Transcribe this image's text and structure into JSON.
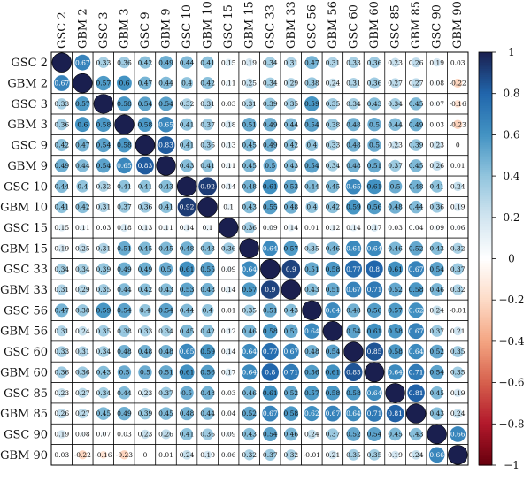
{
  "chart_data": {
    "type": "heatmap",
    "title": "",
    "row_labels": [
      "GSC 2",
      "GBM 2",
      "GSC 3",
      "GBM 3",
      "GSC 9",
      "GBM 9",
      "GSC 10",
      "GBM 10",
      "GSC 15",
      "GBM 15",
      "GSC 33",
      "GBM 33",
      "GSC 56",
      "GBM 56",
      "GSC 60",
      "GBM 60",
      "GSC 85",
      "GBM 85",
      "GSC 90",
      "GBM 90"
    ],
    "col_labels": [
      "GSC 2",
      "GBM 2",
      "GSC 3",
      "GBM 3",
      "GSC 9",
      "GBM 9",
      "GSC 10",
      "GBM 10",
      "GSC 15",
      "GBM 15",
      "GSC 33",
      "GBM 33",
      "GSC 56",
      "GBM 56",
      "GSC 60",
      "GBM 60",
      "GSC 85",
      "GBM 85",
      "GSC 90",
      "GBM 90"
    ],
    "values": [
      [
        1,
        0.67,
        0.33,
        0.36,
        0.42,
        0.49,
        0.44,
        0.41,
        0.15,
        0.19,
        0.34,
        0.31,
        0.47,
        0.31,
        0.33,
        0.36,
        0.23,
        0.26,
        0.19,
        0.03
      ],
      [
        0.67,
        1,
        0.57,
        0.6,
        0.47,
        0.44,
        0.4,
        0.42,
        0.11,
        0.25,
        0.34,
        0.29,
        0.38,
        0.24,
        0.31,
        0.36,
        0.27,
        0.27,
        0.08,
        -0.22
      ],
      [
        0.33,
        0.57,
        1,
        0.58,
        0.54,
        0.54,
        0.32,
        0.31,
        0.03,
        0.31,
        0.39,
        0.35,
        0.59,
        0.35,
        0.34,
        0.43,
        0.34,
        0.45,
        0.07,
        -0.16
      ],
      [
        0.36,
        0.6,
        0.58,
        1,
        0.58,
        0.65,
        0.41,
        0.37,
        0.18,
        0.51,
        0.49,
        0.44,
        0.54,
        0.38,
        0.48,
        0.5,
        0.44,
        0.49,
        0.03,
        -0.23
      ],
      [
        0.42,
        0.47,
        0.54,
        0.58,
        1,
        0.83,
        0.41,
        0.36,
        0.13,
        0.45,
        0.49,
        0.42,
        0.4,
        0.33,
        0.48,
        0.5,
        0.23,
        0.39,
        0.23,
        0
      ],
      [
        0.49,
        0.44,
        0.54,
        0.65,
        0.83,
        1,
        0.43,
        0.41,
        0.11,
        0.45,
        0.5,
        0.43,
        0.54,
        0.34,
        0.48,
        0.51,
        0.37,
        0.45,
        0.26,
        0.01
      ],
      [
        0.44,
        0.4,
        0.32,
        0.41,
        0.41,
        0.43,
        1,
        0.92,
        0.14,
        0.48,
        0.61,
        0.53,
        0.44,
        0.45,
        0.65,
        0.61,
        0.5,
        0.48,
        0.41,
        0.24
      ],
      [
        0.41,
        0.42,
        0.31,
        0.37,
        0.36,
        0.41,
        0.92,
        1,
        0.1,
        0.43,
        0.55,
        0.48,
        0.4,
        0.42,
        0.59,
        0.56,
        0.48,
        0.44,
        0.36,
        0.19
      ],
      [
        0.15,
        0.11,
        0.03,
        0.18,
        0.13,
        0.11,
        0.14,
        0.1,
        1,
        0.36,
        0.09,
        0.14,
        0.01,
        0.12,
        0.14,
        0.17,
        0.03,
        0.04,
        0.09,
        0.06
      ],
      [
        0.19,
        0.25,
        0.31,
        0.51,
        0.45,
        0.45,
        0.48,
        0.43,
        0.36,
        1,
        0.64,
        0.57,
        0.35,
        0.46,
        0.64,
        0.64,
        0.46,
        0.52,
        0.43,
        0.32
      ],
      [
        0.34,
        0.34,
        0.39,
        0.49,
        0.49,
        0.5,
        0.61,
        0.55,
        0.09,
        0.64,
        1,
        0.9,
        0.51,
        0.58,
        0.77,
        0.8,
        0.61,
        0.67,
        0.54,
        0.37
      ],
      [
        0.31,
        0.29,
        0.35,
        0.44,
        0.42,
        0.43,
        0.53,
        0.48,
        0.14,
        0.57,
        0.9,
        1,
        0.43,
        0.51,
        0.67,
        0.71,
        0.52,
        0.58,
        0.46,
        0.32
      ],
      [
        0.47,
        0.38,
        0.59,
        0.54,
        0.4,
        0.54,
        0.44,
        0.4,
        0.01,
        0.35,
        0.51,
        0.43,
        1,
        0.64,
        0.48,
        0.56,
        0.57,
        0.62,
        0.24,
        -0.01
      ],
      [
        0.31,
        0.24,
        0.35,
        0.38,
        0.33,
        0.34,
        0.45,
        0.42,
        0.12,
        0.46,
        0.58,
        0.51,
        0.64,
        1,
        0.54,
        0.61,
        0.58,
        0.67,
        0.37,
        0.21
      ],
      [
        0.33,
        0.31,
        0.34,
        0.48,
        0.48,
        0.48,
        0.65,
        0.59,
        0.14,
        0.64,
        0.77,
        0.67,
        0.48,
        0.54,
        1,
        0.85,
        0.58,
        0.64,
        0.52,
        0.35
      ],
      [
        0.36,
        0.36,
        0.43,
        0.5,
        0.5,
        0.51,
        0.61,
        0.56,
        0.17,
        0.64,
        0.8,
        0.71,
        0.56,
        0.61,
        0.85,
        1,
        0.64,
        0.71,
        0.54,
        0.35
      ],
      [
        0.23,
        0.27,
        0.34,
        0.44,
        0.23,
        0.37,
        0.5,
        0.48,
        0.03,
        0.46,
        0.61,
        0.52,
        0.57,
        0.58,
        0.58,
        0.64,
        1,
        0.81,
        0.45,
        0.19
      ],
      [
        0.26,
        0.27,
        0.45,
        0.49,
        0.39,
        0.45,
        0.48,
        0.44,
        0.04,
        0.52,
        0.67,
        0.58,
        0.62,
        0.67,
        0.64,
        0.71,
        0.81,
        1,
        0.43,
        0.24
      ],
      [
        0.19,
        0.08,
        0.07,
        0.03,
        0.23,
        0.26,
        0.41,
        0.36,
        0.09,
        0.43,
        0.54,
        0.46,
        0.24,
        0.37,
        0.52,
        0.54,
        0.45,
        0.43,
        1,
        0.66
      ],
      [
        0.03,
        -0.22,
        -0.16,
        -0.23,
        0,
        0.01,
        0.24,
        0.19,
        0.06,
        0.32,
        0.37,
        0.32,
        -0.01,
        0.21,
        0.35,
        0.35,
        0.19,
        0.24,
        0.66,
        1
      ]
    ],
    "value_range": [
      -1,
      1
    ],
    "colorbar": {
      "ticks": [
        "1",
        "0.8",
        "0.6",
        "0.4",
        "0.2",
        "0",
        "−0.2",
        "−0.4",
        "−0.6",
        "−0.8",
        "−1"
      ],
      "position": "right"
    },
    "colors": {
      "positive_max": "#1a1f4f",
      "positive_mid": "#3f7bb7",
      "neutral": "#ffffff",
      "negative_mid": "#e8a07a",
      "negative_max": "#67000d",
      "grid": "#000000"
    }
  }
}
